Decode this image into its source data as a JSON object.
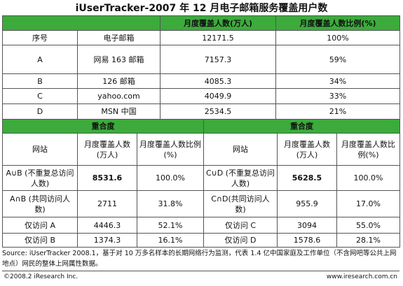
{
  "title": "iUserTracker-2007 年 12 月电子邮箱服务覆盖用户数",
  "table1": {
    "headers": [
      "月度覆盖人数(万人)",
      "月度覆盖人数比例(%)"
    ],
    "rows": [
      [
        "序号",
        "电子邮箱",
        "12171.5",
        "100%"
      ],
      [
        "A",
        "网易 163 邮箱",
        "7157.3",
        "59%"
      ],
      [
        "B",
        "126 邮箱",
        "4085.3",
        "34%"
      ],
      [
        "C",
        "yahoo.com",
        "4049.9",
        "33%"
      ],
      [
        "D",
        "MSN 中国",
        "2534.5",
        "21%"
      ]
    ]
  },
  "table2": {
    "groups": [
      "重合度",
      "重合度"
    ],
    "headers": [
      "网站",
      "月度覆盖人数(万人)",
      "月度覆盖人数比例(%)",
      "网站",
      "月度覆盖人数(万人)",
      "月度覆盖人数比例(%)"
    ],
    "rows": [
      [
        "A∪B (不重复总访问人数)",
        "8531.6",
        "100.0%",
        "C∪D (不重复总访问人数)",
        "5628.5",
        "100.0%"
      ],
      [
        "A∩B (共同访问人数)",
        "2711",
        "31.8%",
        "C∩D(共同访问人数)",
        "955.9",
        "17.0%"
      ],
      [
        "仅访问 A",
        "4446.3",
        "52.1%",
        "仅访问 C",
        "3094",
        "55.0%"
      ],
      [
        "仅访问 B",
        "1374.3",
        "16.1%",
        "仅访问 D",
        "1578.6",
        "28.1%"
      ]
    ]
  },
  "source": "Source: iUserTracker 2008.1，基于对 10 万多名样本的长期网络行为监测，代表 1.4 亿中国家庭及工作单位（不含网吧等公共上网地点）网民的整体上网属性数据。",
  "footer": {
    "copyright": "©2008.2 iResearch Inc.",
    "website": "www.iresearch.com.cn"
  }
}
